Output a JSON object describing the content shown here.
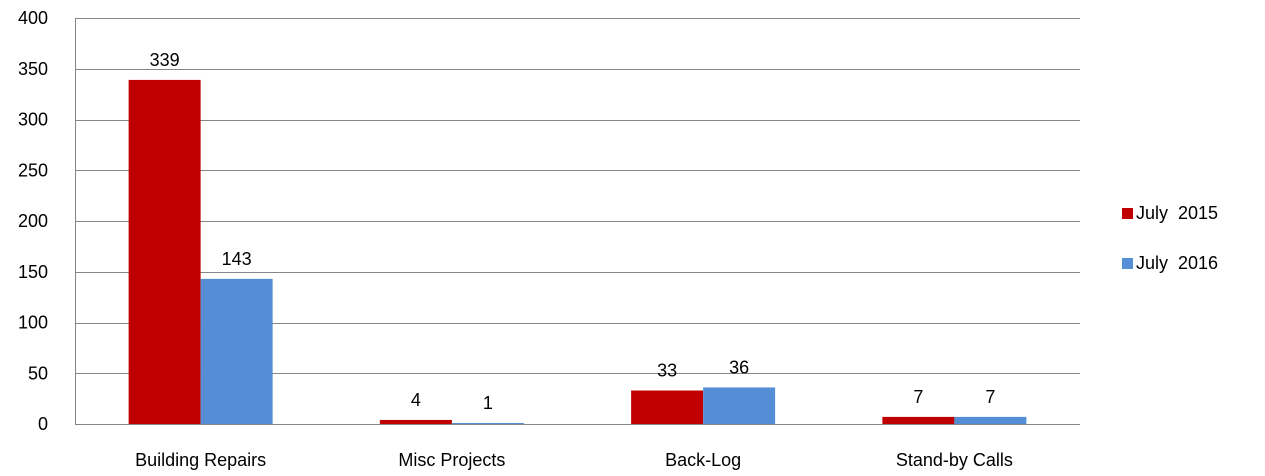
{
  "chart_data": {
    "type": "bar",
    "title": "",
    "xlabel": "",
    "ylabel": "",
    "categories": [
      "Building Repairs",
      "Misc Projects",
      "Back-Log",
      "Stand-by Calls"
    ],
    "series": [
      {
        "name": "July  2015",
        "values": [
          339,
          4,
          33,
          7
        ],
        "color": "#C00000"
      },
      {
        "name": "July  2016",
        "values": [
          143,
          1,
          36,
          7
        ],
        "color": "#558ED5"
      }
    ],
    "ylim": [
      0,
      400
    ],
    "yticks": [
      0,
      50,
      100,
      150,
      200,
      250,
      300,
      350,
      400
    ],
    "grid": true,
    "legend_position": "right"
  }
}
